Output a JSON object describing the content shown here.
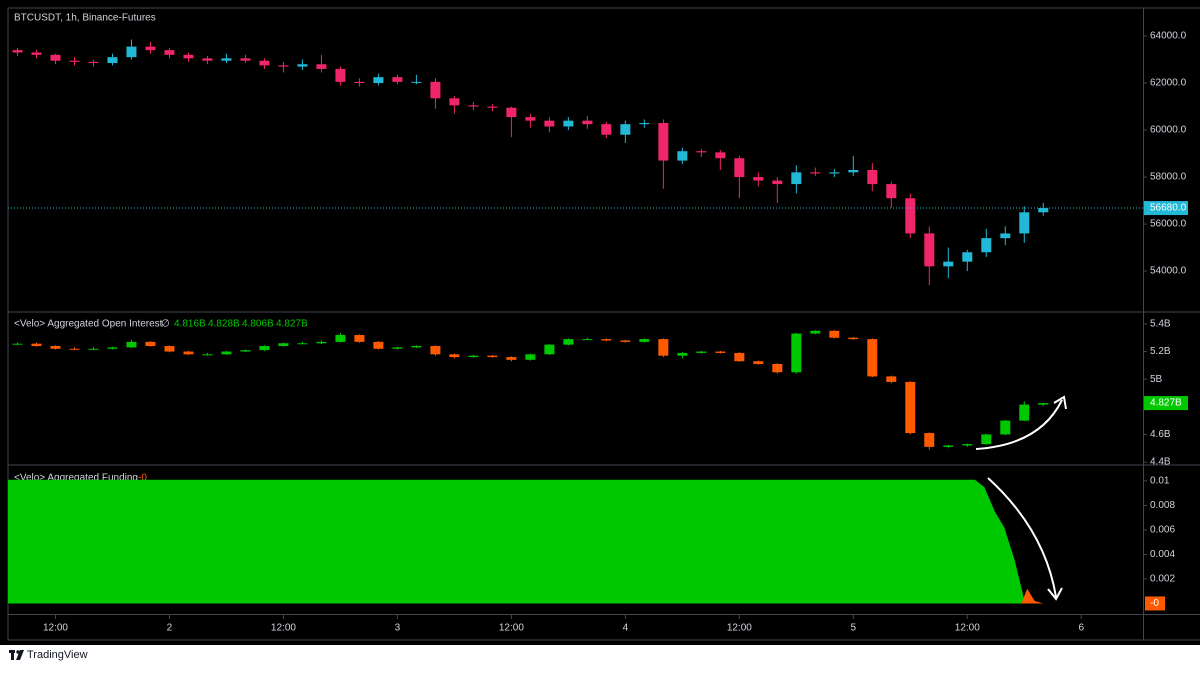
{
  "chart_data": [
    {
      "type": "candlestick",
      "title": "BTCUSDT, 1h, Binance-Futures",
      "up_color": "#22b8d6",
      "down_color": "#f0256a",
      "xlim": [
        0,
        119.5
      ],
      "xticks": [
        {
          "value": 5,
          "label": "12:00"
        },
        {
          "value": 17,
          "label": "2"
        },
        {
          "value": 29,
          "label": "12:00"
        },
        {
          "value": 41,
          "label": "3"
        },
        {
          "value": 53,
          "label": "12:00"
        },
        {
          "value": 65,
          "label": "4"
        },
        {
          "value": 77,
          "label": "12:00"
        },
        {
          "value": 89,
          "label": "5"
        },
        {
          "value": 101,
          "label": "12:00"
        },
        {
          "value": 113,
          "label": "6"
        }
      ],
      "ylim": [
        52300,
        65150
      ],
      "yticks": [
        {
          "value": 54000,
          "label": "54000.0"
        },
        {
          "value": 56000,
          "label": "56000.0"
        },
        {
          "value": 58000,
          "label": "58000.0"
        },
        {
          "value": 60000,
          "label": "60000.0"
        },
        {
          "value": 62000,
          "label": "62000.0"
        },
        {
          "value": 64000,
          "label": "64000.0"
        }
      ],
      "last": {
        "value": 56680,
        "label": "56680.0"
      },
      "x": [
        1,
        3,
        5,
        7,
        9,
        11,
        13,
        15,
        17,
        19,
        21,
        23,
        25,
        27,
        29,
        31,
        33,
        35,
        37,
        39,
        41,
        43,
        45,
        47,
        49,
        51,
        53,
        55,
        57,
        59,
        61,
        63,
        65,
        67,
        69,
        71,
        73,
        75,
        77,
        79,
        81,
        83,
        85,
        87,
        89,
        91,
        93,
        95,
        97,
        99,
        101,
        103,
        105,
        107,
        109
      ],
      "open": [
        63400,
        63300,
        63200,
        62950,
        62900,
        62850,
        63100,
        63550,
        63400,
        63200,
        63050,
        62950,
        63050,
        62950,
        62750,
        62700,
        62800,
        62600,
        62050,
        62000,
        62250,
        62050,
        62050,
        61350,
        61050,
        61000,
        60950,
        60550,
        60400,
        60150,
        60400,
        60250,
        59800,
        60250,
        60300,
        58700,
        59100,
        59050,
        58800,
        58000,
        57850,
        57700,
        58200,
        58150,
        58200,
        58300,
        57700,
        57100,
        55600,
        54200,
        54400,
        54800,
        55400,
        55600,
        56500
      ],
      "high": [
        63500,
        63400,
        63250,
        63100,
        63000,
        63250,
        63850,
        63750,
        63500,
        63300,
        63150,
        63250,
        63200,
        63050,
        62900,
        63000,
        63200,
        62700,
        62200,
        62400,
        62350,
        62350,
        62200,
        61450,
        61200,
        61100,
        61000,
        60700,
        60550,
        60550,
        60600,
        60350,
        60400,
        60450,
        60450,
        59250,
        59200,
        59150,
        58900,
        58200,
        58000,
        58500,
        58400,
        58350,
        58900,
        58600,
        57800,
        57300,
        55900,
        55000,
        54900,
        55800,
        55900,
        56750,
        56900
      ],
      "low": [
        63150,
        63050,
        62800,
        62750,
        62700,
        62750,
        63000,
        63250,
        63050,
        62900,
        62800,
        62850,
        62850,
        62600,
        62450,
        62550,
        62450,
        61900,
        61850,
        61900,
        61950,
        61950,
        60900,
        60700,
        60850,
        60800,
        59700,
        60100,
        59900,
        60000,
        60050,
        59650,
        59450,
        60100,
        57500,
        58550,
        58850,
        58300,
        57100,
        57600,
        56900,
        57300,
        58050,
        58000,
        58050,
        57400,
        56700,
        55400,
        53400,
        53700,
        54000,
        54600,
        55100,
        55200,
        56350
      ],
      "close": [
        63300,
        63200,
        62950,
        62900,
        62850,
        63100,
        63550,
        63400,
        63200,
        63050,
        62950,
        63050,
        62950,
        62750,
        62700,
        62800,
        62600,
        62050,
        62000,
        62250,
        62050,
        62050,
        61350,
        61050,
        61000,
        60950,
        60550,
        60400,
        60150,
        60400,
        60250,
        59800,
        60250,
        60300,
        58700,
        59100,
        59050,
        58800,
        58000,
        57850,
        57700,
        58200,
        58150,
        58200,
        58300,
        57700,
        57100,
        55600,
        54200,
        54400,
        54800,
        55400,
        55600,
        56500,
        56680
      ]
    },
    {
      "type": "candlestick",
      "title": "<Velo> Aggregated Open Interest",
      "title_icon": "∅",
      "up_color": "#00c800",
      "down_color": "#ff5a00",
      "ohlc_labels": [
        "4.816B",
        "4.828B",
        "4.806B",
        "4.827B"
      ],
      "xlim": [
        0,
        119.5
      ],
      "ylim": [
        4.386,
        5.479
      ],
      "yticks": [
        {
          "value": 4.4,
          "label": "4.4B"
        },
        {
          "value": 4.6,
          "label": "4.6B"
        },
        {
          "value": 5,
          "label": "5B"
        },
        {
          "value": 5.2,
          "label": "5.2B"
        },
        {
          "value": 5.4,
          "label": "5.4B"
        }
      ],
      "last": {
        "value": 4.827,
        "label": "4.827B"
      },
      "x": [
        1,
        3,
        5,
        7,
        9,
        11,
        13,
        15,
        17,
        19,
        21,
        23,
        25,
        27,
        29,
        31,
        33,
        35,
        37,
        39,
        41,
        43,
        45,
        47,
        49,
        51,
        53,
        55,
        57,
        59,
        61,
        63,
        65,
        67,
        69,
        71,
        73,
        75,
        77,
        79,
        81,
        83,
        85,
        87,
        89,
        91,
        93,
        95,
        97,
        99,
        101,
        103,
        105,
        107,
        109
      ],
      "open": [
        5.25,
        5.257,
        5.24,
        5.22,
        5.215,
        5.22,
        5.23,
        5.27,
        5.24,
        5.2,
        5.18,
        5.18,
        5.2,
        5.21,
        5.24,
        5.26,
        5.26,
        5.27,
        5.32,
        5.27,
        5.22,
        5.23,
        5.24,
        5.18,
        5.16,
        5.17,
        5.16,
        5.14,
        5.18,
        5.25,
        5.29,
        5.29,
        5.28,
        5.27,
        5.29,
        5.17,
        5.19,
        5.2,
        5.19,
        5.13,
        5.11,
        5.05,
        5.33,
        5.35,
        5.3,
        5.29,
        5.02,
        4.98,
        4.61,
        4.51,
        4.52,
        4.53,
        4.6,
        4.7,
        4.816
      ],
      "high": [
        5.265,
        5.265,
        5.245,
        5.23,
        5.23,
        5.235,
        5.285,
        5.275,
        5.245,
        5.205,
        5.19,
        5.205,
        5.215,
        5.245,
        5.265,
        5.27,
        5.28,
        5.335,
        5.325,
        5.275,
        5.235,
        5.245,
        5.245,
        5.185,
        5.175,
        5.175,
        5.165,
        5.185,
        5.255,
        5.295,
        5.3,
        5.295,
        5.285,
        5.295,
        5.295,
        5.195,
        5.205,
        5.205,
        5.195,
        5.135,
        5.115,
        5.335,
        5.355,
        5.355,
        5.305,
        5.295,
        5.025,
        4.985,
        4.615,
        4.525,
        4.535,
        4.605,
        4.705,
        4.84,
        4.828
      ],
      "low": [
        5.245,
        5.235,
        5.215,
        5.21,
        5.21,
        5.215,
        5.225,
        5.235,
        5.195,
        5.175,
        5.17,
        5.175,
        5.195,
        5.205,
        5.235,
        5.255,
        5.255,
        5.265,
        5.265,
        5.215,
        5.215,
        5.225,
        5.17,
        5.15,
        5.155,
        5.155,
        5.13,
        5.135,
        5.175,
        5.245,
        5.285,
        5.275,
        5.265,
        5.265,
        5.16,
        5.15,
        5.185,
        5.185,
        5.125,
        5.105,
        5.04,
        5.04,
        5.325,
        5.295,
        5.285,
        5.015,
        4.97,
        4.6,
        4.49,
        4.5,
        4.51,
        4.525,
        4.595,
        4.695,
        4.806
      ],
      "close": [
        5.257,
        5.24,
        5.22,
        5.215,
        5.22,
        5.23,
        5.27,
        5.24,
        5.2,
        5.18,
        5.18,
        5.2,
        5.21,
        5.24,
        5.26,
        5.26,
        5.27,
        5.32,
        5.27,
        5.22,
        5.23,
        5.24,
        5.18,
        5.16,
        5.17,
        5.16,
        5.14,
        5.18,
        5.25,
        5.29,
        5.29,
        5.28,
        5.27,
        5.29,
        5.17,
        5.19,
        5.2,
        5.19,
        5.13,
        5.11,
        5.05,
        5.33,
        5.35,
        5.3,
        5.29,
        5.02,
        4.98,
        4.61,
        4.51,
        4.52,
        4.53,
        4.6,
        4.7,
        4.816,
        4.827
      ]
    },
    {
      "type": "area",
      "title": "<Velo> Aggregated Funding",
      "xlim": [
        0,
        119.5
      ],
      "ylim": [
        -0.00086,
        0.01122
      ],
      "yticks": [
        0.002,
        0.004,
        0.006,
        0.008,
        0.01
      ],
      "last": {
        "value": 0,
        "label": "-0"
      },
      "last_color": "#ff5a00",
      "series": [
        {
          "color": "#00c800",
          "x": [
            0,
            101.8,
            102.8,
            103.9,
            104.9,
            106,
            107
          ],
          "values": [
            0.0101,
            0.0101,
            0.0095,
            0.0075,
            0.0062,
            0.0035,
            0.0003
          ]
        },
        {
          "color": "#ff5a00",
          "x": [
            106.7,
            107.3,
            108.1,
            109
          ],
          "values": [
            0,
            0.0012,
            0.0002,
            0
          ]
        }
      ]
    }
  ],
  "footer": {
    "brand": "TradingView"
  }
}
